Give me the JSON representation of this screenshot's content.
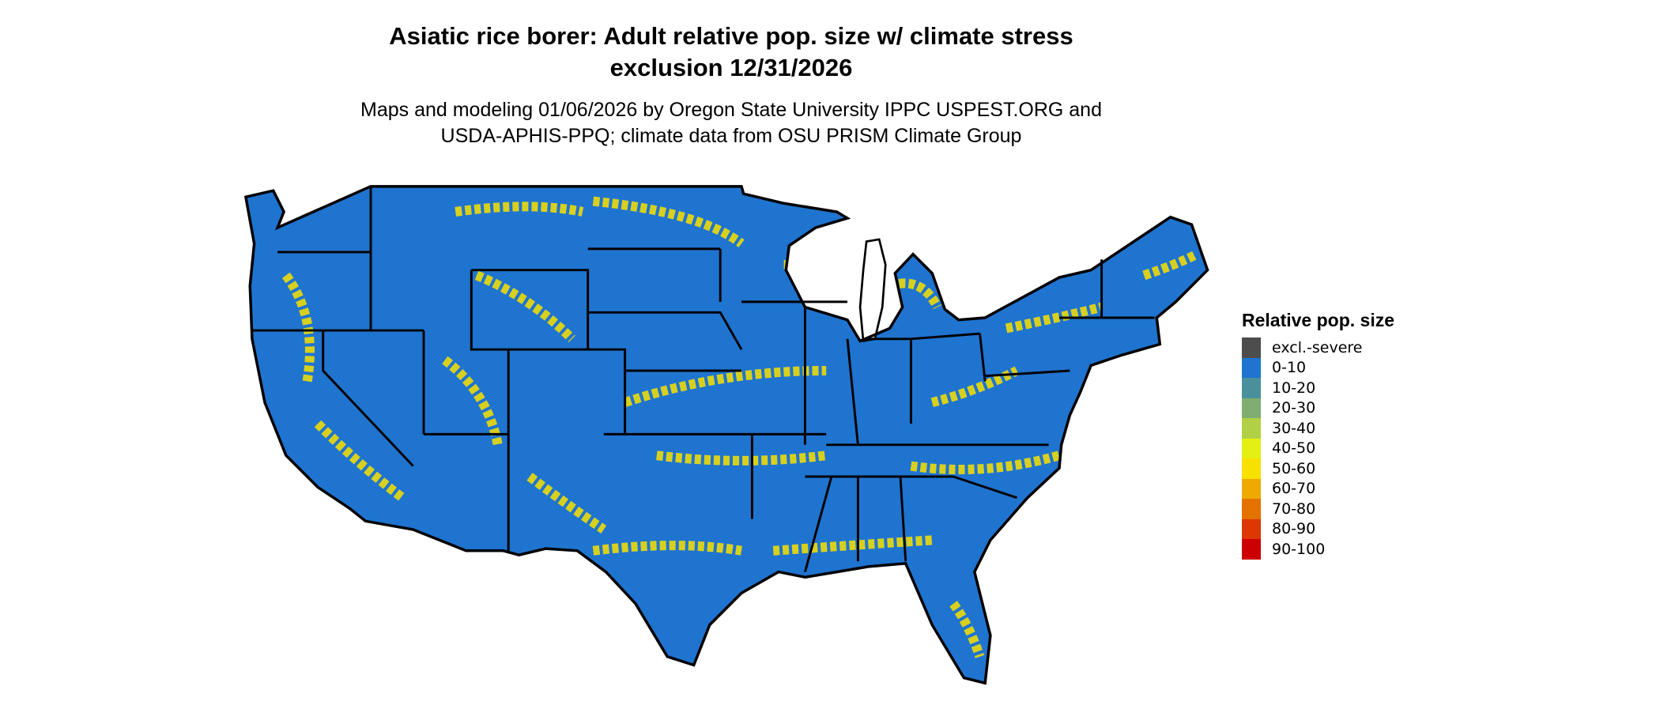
{
  "title_line1": "Asiatic rice borer: Adult relative pop. size w/ climate stress",
  "title_line2": "exclusion 12/31/2026",
  "subtitle_line1": "Maps and modeling 01/06/2026 by Oregon State University IPPC USPEST.ORG and",
  "subtitle_line2": "USDA-APHIS-PPQ; climate data from OSU PRISM Climate Group",
  "legend": {
    "title": "Relative pop. size",
    "items": [
      {
        "label": "excl.-severe",
        "color": "#4d4d4d"
      },
      {
        "label": "0-10",
        "color": "#1f74cf"
      },
      {
        "label": "10-20",
        "color": "#4a909c"
      },
      {
        "label": "20-30",
        "color": "#7fae70"
      },
      {
        "label": "30-40",
        "color": "#b2d046"
      },
      {
        "label": "40-50",
        "color": "#e4f013"
      },
      {
        "label": "50-60",
        "color": "#f8e000"
      },
      {
        "label": "60-70",
        "color": "#efaa00"
      },
      {
        "label": "70-80",
        "color": "#e47200"
      },
      {
        "label": "80-90",
        "color": "#dc3800"
      },
      {
        "label": "90-100",
        "color": "#cc0000"
      }
    ]
  },
  "map": {
    "region": "Contiguous United States",
    "base_color": "#1f74cf",
    "highlight_color": "#f8e000",
    "border_color": "#000000"
  }
}
